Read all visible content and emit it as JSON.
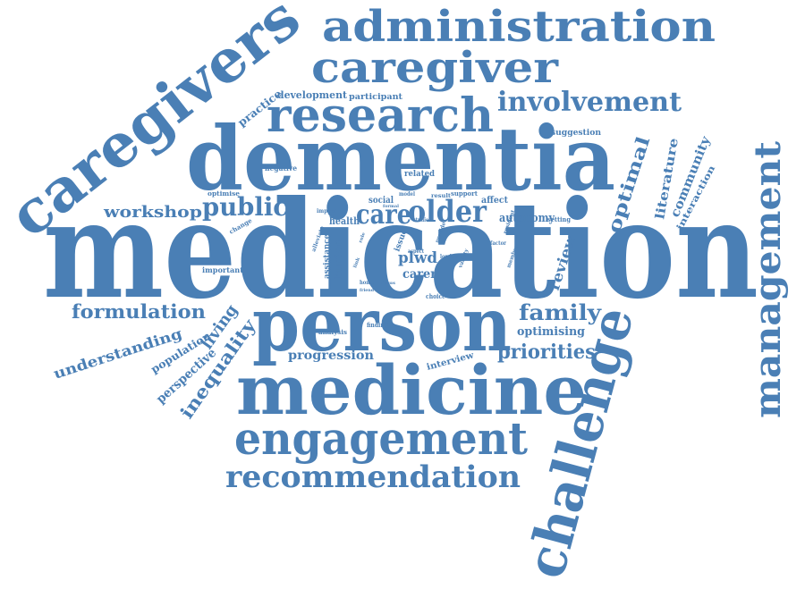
{
  "color": "#4a7fb5",
  "words": [
    "medication",
    "dementia",
    "person",
    "medicine",
    "caregivers",
    "engagement",
    "challenge",
    "research",
    "caregiver",
    "administration",
    "management",
    "involvement",
    "recommendation",
    "public",
    "older",
    "care",
    "family",
    "formulation",
    "workshop",
    "priorities",
    "understanding",
    "inequality",
    "living",
    "optimal",
    "review",
    "literature",
    "community",
    "interaction",
    "carer",
    "plwd",
    "autonomy",
    "optimising",
    "progression",
    "perspective",
    "population",
    "practice",
    "development",
    "participant",
    "suggestion",
    "negative",
    "related",
    "social",
    "health",
    "burden",
    "assistance",
    "interview",
    "affect",
    "support",
    "result",
    "model",
    "optimise",
    "change",
    "important",
    "impact",
    "alleviate",
    "issue",
    "studies",
    "aspect",
    "london",
    "variety",
    "factor",
    "resident",
    "member",
    "setting",
    "choice",
    "finding",
    "analysis",
    "home",
    "friend",
    "focus",
    "formal",
    "provide",
    "role",
    "link"
  ]
}
